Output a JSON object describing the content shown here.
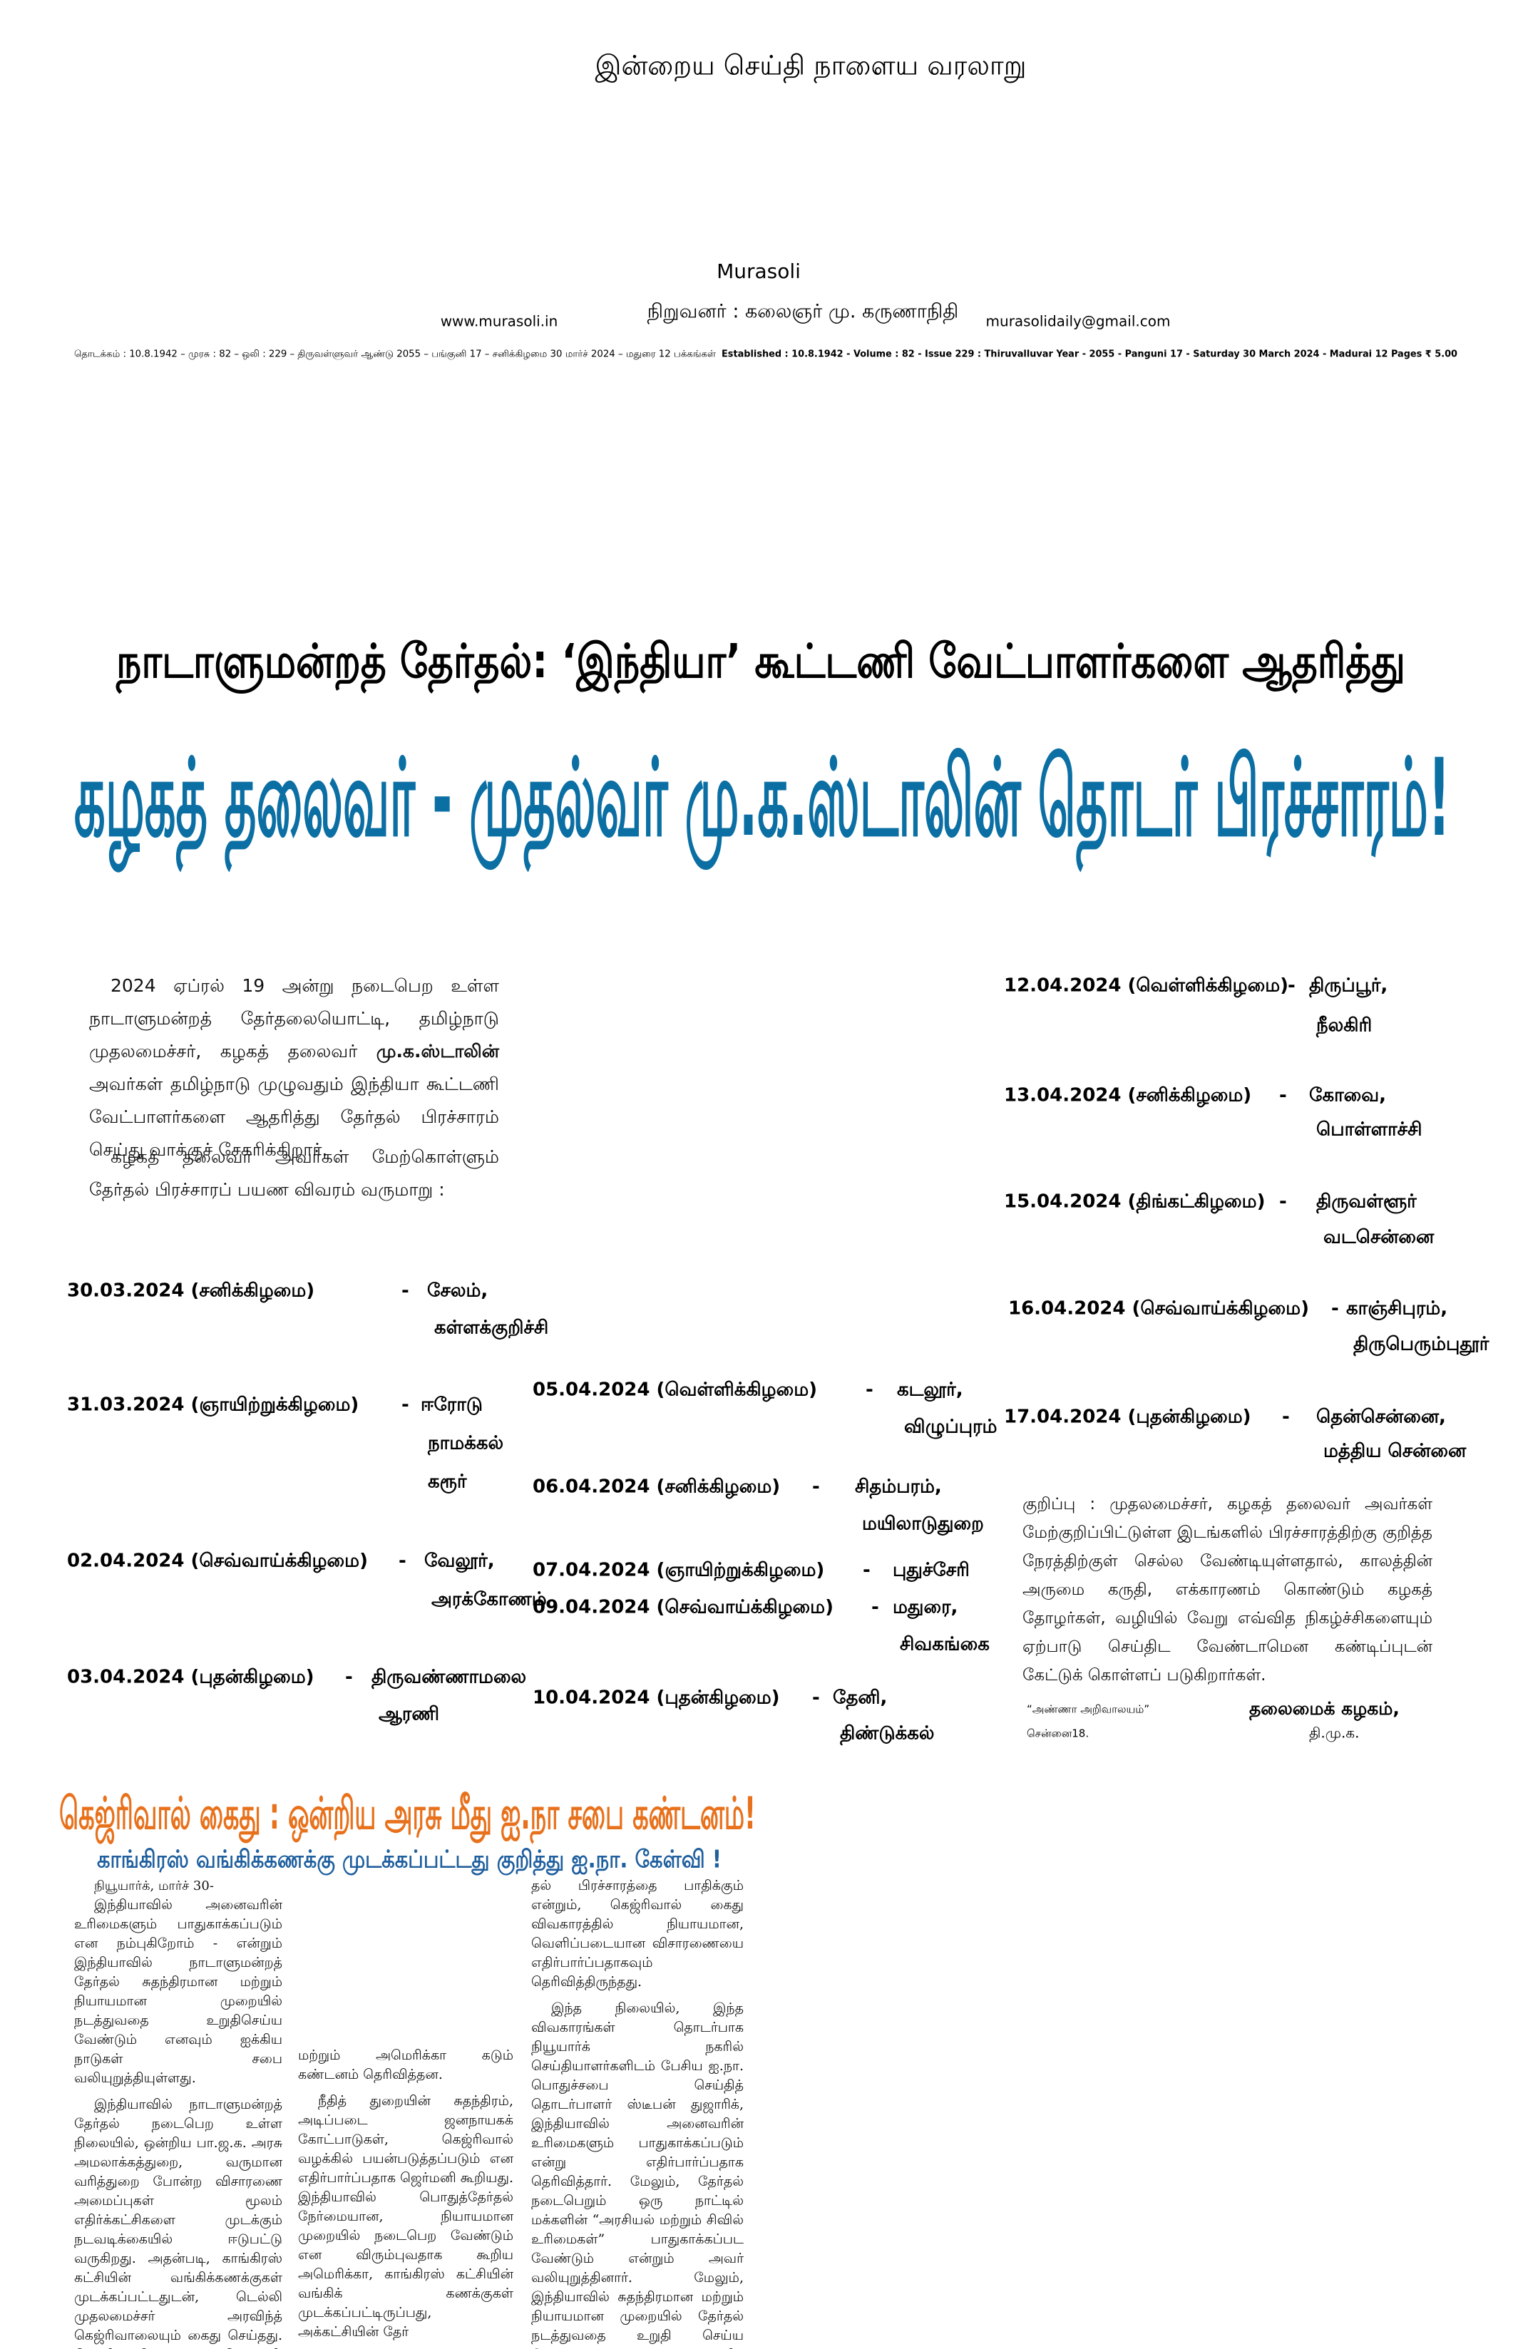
{
  "masthead": {
    "slogan": "இன்றைய செய்தி நாளைய வரலாறு",
    "name": "Murasoli",
    "website": "www.murasoli.in",
    "founder": "நிறுவனர் : கலைஞர் மு. கருணாநிதி",
    "email": "murasolidaily@gmail.com",
    "info_tamil": "தொடக்கம் : 10.8.1942 – முரசு : 82 – ஒலி : 229 – திருவள்ளுவர் ஆண்டு 2055 – பங்குனி 17 – சனிக்கிழமை 30 மார்ச் 2024 – மதுரை 12 பக்கங்கள்",
    "info_english": "Established : 10.8.1942 - Volume : 82 - Issue 229 : Thiruvalluvar Year - 2055 - Panguni 17 - Saturday 30 March 2024 - Madurai 12 Pages ₹ 5.00"
  },
  "lead_story": {
    "kicker": "நாடாளுமன்றத் தேர்தல்: ‘இந்தியா’ கூட்டணி வேட்பாளர்களை ஆதரித்து",
    "headline": "கழகத் தலைவர் - முதல்வர் மு.க.ஸ்டாலின் தொடர் பிரச்சாரம்!",
    "intro": [
      "2024 ஏப்ரல் 19 அன்று நடைபெற உள்ள நாடாளுமன்றத் தேர்தலையொட்டி, தமிழ்நாடு முதலமைச்சர், கழகத் தலைவர் ",
      "மு.க.ஸ்டாலின்",
      " அவர்கள் தமிழ்நாடு முழுவதும் இந்தியா கூட்டணி வேட்பாளர்களை ஆதரித்து தேர்தல் பிரச்சாரம் செய்து வாக்குச் சேகரிக்கிறார்."
    ],
    "intro2": "கழகத் தலைவர் அவர்கள் மேற்கொள்ளும் தேர்தல் பிரச்சாரப் பயண விவரம் வருமாறு :",
    "schedule": [
      {
        "date": "30.03.2024 (சனிக்கிழமை)",
        "dash": "-",
        "places": [
          "சேலம்,",
          "கள்ளக்குறிச்சி"
        ]
      },
      {
        "date": "31.03.2024 (ஞாயிற்றுக்கிழமை)",
        "dash": "-",
        "places": [
          "ஈரோடு",
          "நாமக்கல்",
          "கரூர்"
        ]
      },
      {
        "date": "02.04.2024 (செவ்வாய்க்கிழமை)",
        "dash": "-",
        "places": [
          "வேலூர்,",
          "அரக்கோணம்"
        ]
      },
      {
        "date": "03.04.2024 (புதன்கிழமை)",
        "dash": "-",
        "places": [
          "திருவண்ணாமலை",
          "ஆரணி"
        ]
      },
      {
        "date": "05.04.2024 (வெள்ளிக்கிழமை)",
        "dash": "-",
        "places": [
          "கடலூர்,",
          "விழுப்புரம்"
        ]
      },
      {
        "date": "06.04.2024 (சனிக்கிழமை)",
        "dash": "-",
        "places": [
          "சிதம்பரம்,",
          "மயிலாடுதுறை"
        ]
      },
      {
        "date": "07.04.2024 (ஞாயிற்றுக்கிழமை)",
        "dash": "-",
        "places": [
          "புதுச்சேரி"
        ]
      },
      {
        "date": "09.04.2024 (செவ்வாய்க்கிழமை)",
        "dash": "-",
        "places": [
          "மதுரை,",
          "சிவகங்கை"
        ]
      },
      {
        "date": "10.04.2024 (புதன்கிழமை)",
        "dash": "-",
        "places": [
          "தேனி,",
          "திண்டுக்கல்"
        ]
      },
      {
        "date": "12.04.2024 (வெள்ளிக்கிழமை)",
        "dash": "-",
        "places": [
          "திருப்பூர்,",
          "நீலகிரி"
        ]
      },
      {
        "date": "13.04.2024 (சனிக்கிழமை)",
        "dash": "-",
        "places": [
          "கோவை,",
          "பொள்ளாச்சி"
        ]
      },
      {
        "date": "15.04.2024 (திங்கட்கிழமை)",
        "dash": "-",
        "places": [
          "திருவள்ளூர்",
          "வடசென்னை"
        ]
      },
      {
        "date": "16.04.2024 (செவ்வாய்க்கிழமை)",
        "dash": "-",
        "places": [
          "காஞ்சிபுரம்,",
          "திருபெரும்புதூர்"
        ]
      },
      {
        "date": "17.04.2024 (புதன்கிழமை)",
        "dash": "-",
        "places": [
          "தென்சென்னை,",
          "மத்திய சென்னை"
        ]
      }
    ],
    "note": "குறிப்பு : முதலமைச்சர், கழகத் தலைவர் அவர்கள் மேற்குறிப்பிட்டுள்ள இடங்களில் பிரச்சாரத்திற்கு குறித்த நேரத்திற்குள் செல்ல வேண்டியுள்ளதால், காலத்தின் அருமை கருதி, எக்காரணம் கொண்டும் கழகத் தோழர்கள், வழியில் வேறு எவ்வித நிகழ்ச்சிகளையும் ஏற்பாடு செய்திட வேண்டாமென கண்டிப்புடன் கேட்டுக் கொள்ளப் படுகிறார்கள்.",
    "signoff": {
      "address": "“அண்ணா அறிவாலயம்”",
      "city": "சென்னை18.",
      "org": "தலைமைக் கழகம்,",
      "party": "தி.மு.க."
    }
  },
  "second_story": {
    "headline": "கெஜ்ரிவால் கைது : ஒன்றிய அரசு மீது ஐ.நா சபை கண்டனம்!",
    "subhead": "காங்கிரஸ் வங்கிக்கணக்கு முடக்கப்பட்டது குறித்து ஐ.நா. கேள்வி !",
    "columns": [
      [
        "நியூயார்க், மார்ச் 30-",
        "இந்தியாவில் அனைவரின் உரிமைகளும் பாதுகாக்கப்படும் என நம்புகிறோம் - என்றும் இந்தியாவில் நாடாளுமன்றத் தேர்தல் சுதந்திரமான மற்றும் நியாயமான முறையில் நடத்துவதை உறுதிசெய்ய வேண்டும் எனவும் ஐக்கிய நாடுகள் சபை வலியுறுத்தியுள்ளது.",
        "இந்தியாவில் நாடாளுமன்றத் தேர்தல் நடைபெற உள்ள நிலையில், ஒன்றிய பா.ஜ.க. அரசு அமலாக்கத்துறை, வருமான வரித்துறை போன்ற விசாரணை அமைப்புகள் மூலம் எதிர்க்கட்சிகளை முடக்கும் நடவடிக்கையில் ஈடுபட்டு வருகிறது. அதன்படி, காங்கிரஸ் கட்சியின் வங்கிக்கணக்குகள் முடக்கப்பட்டதுடன், டெல்லி முதலமைச்சர் அரவிந்த் கெஜ்ரிவாலையும் கைது செய்தது. கெஜ்ரிவாலின் கைதுக்கு ஜெர்மனி"
      ],
      [
        "மற்றும் அமெரிக்கா கடும் கண்டனம் தெரிவித்தன.",
        "நீதித் துறையின் சுதந்திரம், அடிப்படை ஜனநாயகக் கோட்பாடுகள், கெஜ்ரிவால் வழக்கில் பயன்படுத்தப்படும் என எதிர்பார்ப்பதாக ஜெர்மனி கூறியது. இந்தியாவில் பொதுத்தேர்தல் நேர்மையான, நியாயமான முறையில் நடைபெற வேண்டும் என விரும்புவதாக கூறிய அமெரிக்கா, காங்கிரஸ் கட்சியின் வங்கிக் கணக்குகள் முடக்கப்பட்டிருப்பது, அக்கட்சியின் தேர்"
      ],
      [
        "தல் பிரச்சாரத்தை பாதிக்கும் என்றும், கெஜ்ரிவால் கைது விவகாரத்தில் நியாயமான, வெளிப்படையான விசாரணையை எதிர்பார்ப்பதாகவும் தெரிவித்திருந்தது.",
        "இந்த நிலையில், இந்த விவகாரங்கள் தொடர்பாக நியூயார்க் நகரில் செய்தியாளர்களிடம் பேசிய ஐ.நா. பொதுச்சபை செய்தித் தொடர்பாளர் ஸ்டீபன் துஜாரிக், இந்தியாவில் அனைவரின் உரிமைகளும் பாதுகாக்கப்படும் என்று எதிர்பார்ப்பதாக தெரிவித்தார். மேலும், தேர்தல் நடைபெறும் ஒரு நாட்டில் மக்களின் “அரசியல் மற்றும் சிவில் உரிமைகள்” பாதுகாக்கப்பட வேண்டும் என்றும் அவர் வலியுறுத்தினார். மேலும், இந்தியாவில் சுதந்திரமான மற்றும் நியாயமான முறையில் தேர்தல் நடத்துவதை உறுதி செய்ய வேண்டும் ஸ்டீபன் துஜாரிக் வலியுறுத்தினார்."
      ]
    ]
  }
}
